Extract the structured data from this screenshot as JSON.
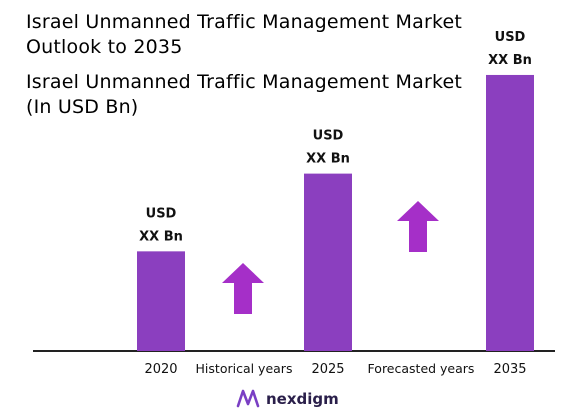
{
  "chart_data": {
    "type": "bar",
    "title": "Israel Unmanned Traffic Management Market\nOutlook to 2035",
    "subtitle": "Israel Unmanned Traffic Management Market\n(In USD Bn)",
    "categories": [
      "2020",
      "2025",
      "2035"
    ],
    "values": [
      100,
      178,
      277
    ],
    "value_labels": [
      [
        "USD",
        "XX Bn"
      ],
      [
        "USD",
        "XX Bn"
      ],
      [
        "USD",
        "XX Bn"
      ]
    ],
    "period_labels": [
      "Historical years",
      "Forecasted years"
    ],
    "bar_color": "#8b3fbf",
    "arrow_color": "#a52fc8",
    "axis_color": "#222222",
    "ylim": [
      0,
      290
    ],
    "grid": false,
    "legend": "none"
  },
  "logo": {
    "text": "nexdigm",
    "icon": "nexdigm-logo-icon"
  }
}
